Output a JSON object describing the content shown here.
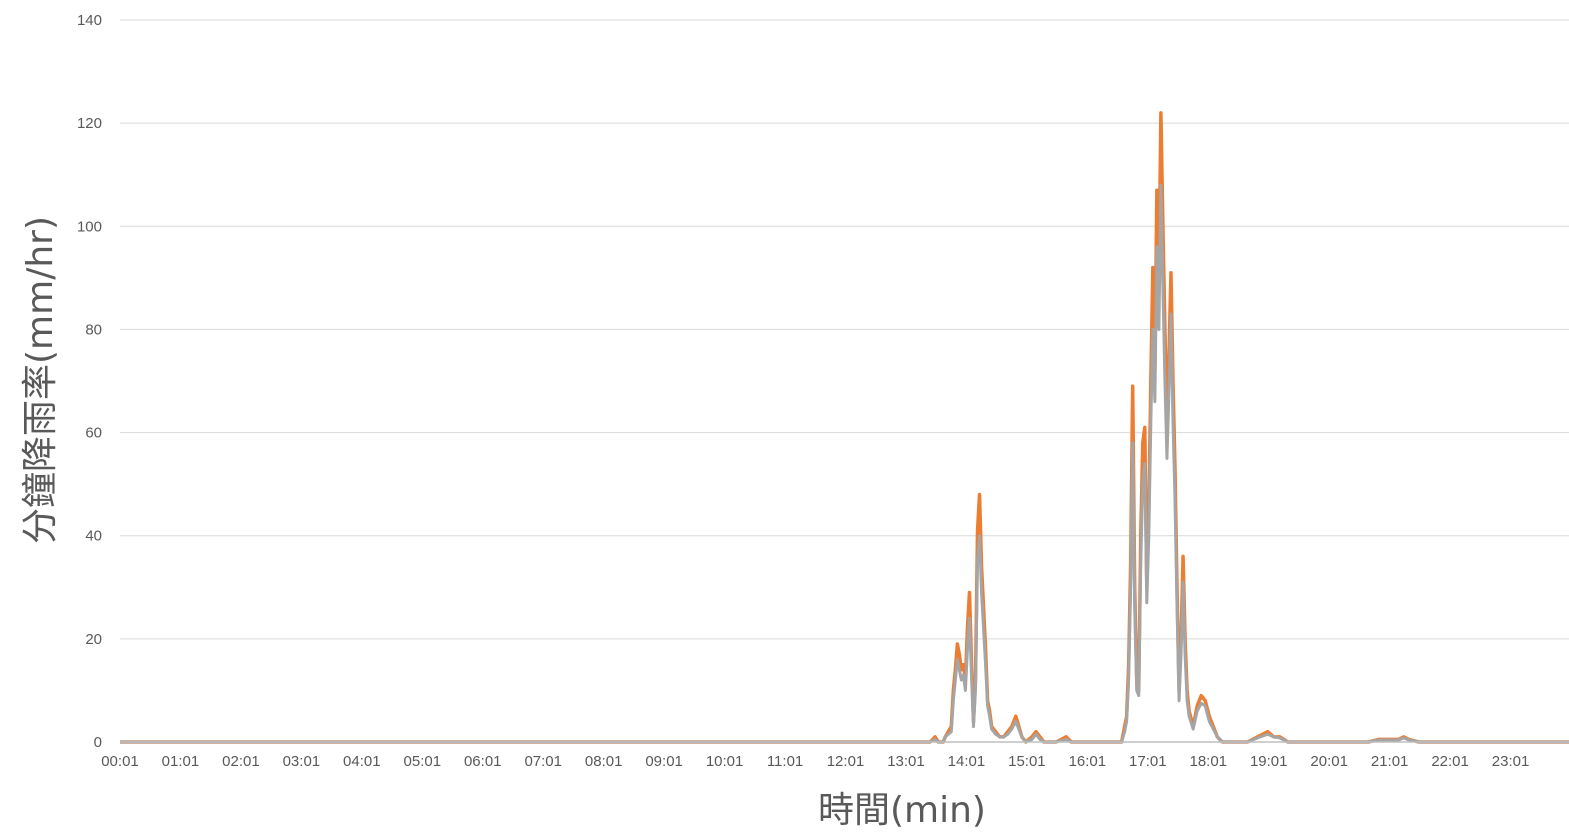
{
  "chart_data": {
    "type": "line",
    "title": "",
    "xlabel": "時間(min)",
    "ylabel": "分鐘降雨率(mm/hr)",
    "ylim": [
      0,
      140
    ],
    "yticks": [
      0,
      20,
      40,
      60,
      80,
      100,
      120,
      140
    ],
    "grid": true,
    "legend": "none",
    "x_tick_labels": [
      "00:01",
      "01:01",
      "02:01",
      "03:01",
      "04:01",
      "05:01",
      "06:01",
      "07:01",
      "08:01",
      "09:01",
      "10:01",
      "11:01",
      "12:01",
      "13:01",
      "14:01",
      "15:01",
      "16:01",
      "17:01",
      "18:01",
      "19:01",
      "20:01",
      "21:01",
      "22:01",
      "23:01"
    ],
    "colors": {
      "grid": "#d9d9d9",
      "axis": "#bfbfbf",
      "text": "#595959"
    },
    "series": [
      {
        "color": "#ED7D31",
        "points": [
          [
            "00:01",
            0
          ],
          [
            "13:25",
            0
          ],
          [
            "13:30",
            1
          ],
          [
            "13:33",
            0
          ],
          [
            "13:38",
            0
          ],
          [
            "13:40",
            1
          ],
          [
            "13:43",
            2
          ],
          [
            "13:46",
            3
          ],
          [
            "13:48",
            10
          ],
          [
            "13:50",
            14
          ],
          [
            "13:52",
            19
          ],
          [
            "13:54",
            17
          ],
          [
            "13:56",
            14
          ],
          [
            "13:58",
            15
          ],
          [
            "14:00",
            12
          ],
          [
            "14:02",
            22
          ],
          [
            "14:04",
            29
          ],
          [
            "14:06",
            16
          ],
          [
            "14:08",
            4
          ],
          [
            "14:10",
            12
          ],
          [
            "14:12",
            41
          ],
          [
            "14:14",
            48
          ],
          [
            "14:16",
            34
          ],
          [
            "14:18",
            26
          ],
          [
            "14:20",
            18
          ],
          [
            "14:22",
            8
          ],
          [
            "14:24",
            6
          ],
          [
            "14:26",
            3
          ],
          [
            "14:30",
            2
          ],
          [
            "14:34",
            1
          ],
          [
            "14:38",
            1
          ],
          [
            "14:42",
            2
          ],
          [
            "14:46",
            3
          ],
          [
            "14:50",
            5
          ],
          [
            "14:53",
            3
          ],
          [
            "14:56",
            1
          ],
          [
            "15:00",
            0
          ],
          [
            "15:06",
            1
          ],
          [
            "15:10",
            2
          ],
          [
            "15:14",
            1
          ],
          [
            "15:18",
            0
          ],
          [
            "15:30",
            0
          ],
          [
            "15:40",
            1
          ],
          [
            "15:45",
            0
          ],
          [
            "16:35",
            0
          ],
          [
            "16:38",
            3
          ],
          [
            "16:40",
            5
          ],
          [
            "16:42",
            15
          ],
          [
            "16:44",
            35
          ],
          [
            "16:46",
            69
          ],
          [
            "16:48",
            30
          ],
          [
            "16:50",
            12
          ],
          [
            "16:52",
            10
          ],
          [
            "16:54",
            40
          ],
          [
            "16:56",
            58
          ],
          [
            "16:58",
            61
          ],
          [
            "17:00",
            30
          ],
          [
            "17:02",
            45
          ],
          [
            "17:04",
            70
          ],
          [
            "17:06",
            92
          ],
          [
            "17:08",
            72
          ],
          [
            "17:10",
            107
          ],
          [
            "17:12",
            90
          ],
          [
            "17:14",
            122
          ],
          [
            "17:16",
            100
          ],
          [
            "17:18",
            80
          ],
          [
            "17:20",
            60
          ],
          [
            "17:22",
            75
          ],
          [
            "17:24",
            91
          ],
          [
            "17:26",
            70
          ],
          [
            "17:28",
            53
          ],
          [
            "17:30",
            30
          ],
          [
            "17:32",
            10
          ],
          [
            "17:34",
            20
          ],
          [
            "17:36",
            36
          ],
          [
            "17:38",
            20
          ],
          [
            "17:40",
            10
          ],
          [
            "17:42",
            6
          ],
          [
            "17:46",
            3
          ],
          [
            "17:50",
            7
          ],
          [
            "17:54",
            9
          ],
          [
            "17:58",
            8
          ],
          [
            "18:02",
            5
          ],
          [
            "18:06",
            3
          ],
          [
            "18:10",
            1
          ],
          [
            "18:15",
            0
          ],
          [
            "18:40",
            0
          ],
          [
            "18:50",
            1
          ],
          [
            "19:00",
            2
          ],
          [
            "19:06",
            1
          ],
          [
            "19:12",
            1
          ],
          [
            "19:20",
            0
          ],
          [
            "20:40",
            0
          ],
          [
            "20:50",
            0.5
          ],
          [
            "21:00",
            0.5
          ],
          [
            "21:10",
            0.5
          ],
          [
            "21:15",
            1
          ],
          [
            "21:20",
            0.5
          ],
          [
            "21:30",
            0
          ],
          [
            "23:59",
            0
          ]
        ]
      },
      {
        "color": "#A5A5A5",
        "points": [
          [
            "00:01",
            0
          ],
          [
            "13:25",
            0
          ],
          [
            "13:30",
            0.5
          ],
          [
            "13:33",
            0
          ],
          [
            "13:38",
            0
          ],
          [
            "13:40",
            1
          ],
          [
            "13:43",
            1.5
          ],
          [
            "13:46",
            2
          ],
          [
            "13:48",
            8
          ],
          [
            "13:50",
            12
          ],
          [
            "13:52",
            16
          ],
          [
            "13:54",
            14
          ],
          [
            "13:56",
            12
          ],
          [
            "13:58",
            13
          ],
          [
            "14:00",
            10
          ],
          [
            "14:02",
            18
          ],
          [
            "14:04",
            24
          ],
          [
            "14:06",
            13
          ],
          [
            "14:08",
            3
          ],
          [
            "14:10",
            10
          ],
          [
            "14:12",
            35
          ],
          [
            "14:14",
            40
          ],
          [
            "14:16",
            29
          ],
          [
            "14:18",
            22
          ],
          [
            "14:20",
            15
          ],
          [
            "14:22",
            7
          ],
          [
            "14:24",
            5
          ],
          [
            "14:26",
            2.5
          ],
          [
            "14:30",
            1.5
          ],
          [
            "14:34",
            1
          ],
          [
            "14:38",
            1
          ],
          [
            "14:42",
            1.5
          ],
          [
            "14:46",
            2.5
          ],
          [
            "14:50",
            4
          ],
          [
            "14:53",
            2.5
          ],
          [
            "14:56",
            1
          ],
          [
            "15:00",
            0
          ],
          [
            "15:06",
            0.5
          ],
          [
            "15:10",
            1.5
          ],
          [
            "15:14",
            0.5
          ],
          [
            "15:18",
            0
          ],
          [
            "15:30",
            0
          ],
          [
            "15:40",
            0.5
          ],
          [
            "15:45",
            0
          ],
          [
            "16:35",
            0
          ],
          [
            "16:38",
            2
          ],
          [
            "16:40",
            4
          ],
          [
            "16:42",
            12
          ],
          [
            "16:44",
            30
          ],
          [
            "16:46",
            58
          ],
          [
            "16:48",
            26
          ],
          [
            "16:50",
            10
          ],
          [
            "16:52",
            9
          ],
          [
            "16:54",
            35
          ],
          [
            "16:56",
            50
          ],
          [
            "16:58",
            54
          ],
          [
            "17:00",
            27
          ],
          [
            "17:02",
            40
          ],
          [
            "17:04",
            62
          ],
          [
            "17:06",
            80
          ],
          [
            "17:08",
            66
          ],
          [
            "17:10",
            96
          ],
          [
            "17:12",
            80
          ],
          [
            "17:14",
            108
          ],
          [
            "17:16",
            88
          ],
          [
            "17:18",
            70
          ],
          [
            "17:20",
            55
          ],
          [
            "17:22",
            68
          ],
          [
            "17:24",
            83
          ],
          [
            "17:26",
            62
          ],
          [
            "17:28",
            47
          ],
          [
            "17:30",
            26
          ],
          [
            "17:32",
            8
          ],
          [
            "17:34",
            17
          ],
          [
            "17:36",
            31
          ],
          [
            "17:38",
            17
          ],
          [
            "17:40",
            8
          ],
          [
            "17:42",
            5
          ],
          [
            "17:46",
            2.5
          ],
          [
            "17:50",
            6
          ],
          [
            "17:54",
            7.5
          ],
          [
            "17:58",
            7
          ],
          [
            "18:02",
            4
          ],
          [
            "18:06",
            2.5
          ],
          [
            "18:10",
            1
          ],
          [
            "18:15",
            0
          ],
          [
            "18:40",
            0
          ],
          [
            "18:50",
            0.8
          ],
          [
            "19:00",
            1.5
          ],
          [
            "19:06",
            1
          ],
          [
            "19:12",
            0.8
          ],
          [
            "19:20",
            0
          ],
          [
            "20:40",
            0
          ],
          [
            "20:50",
            0.4
          ],
          [
            "21:00",
            0.4
          ],
          [
            "21:10",
            0.4
          ],
          [
            "21:15",
            0.8
          ],
          [
            "21:20",
            0.4
          ],
          [
            "21:30",
            0
          ],
          [
            "23:59",
            0
          ]
        ]
      }
    ]
  }
}
